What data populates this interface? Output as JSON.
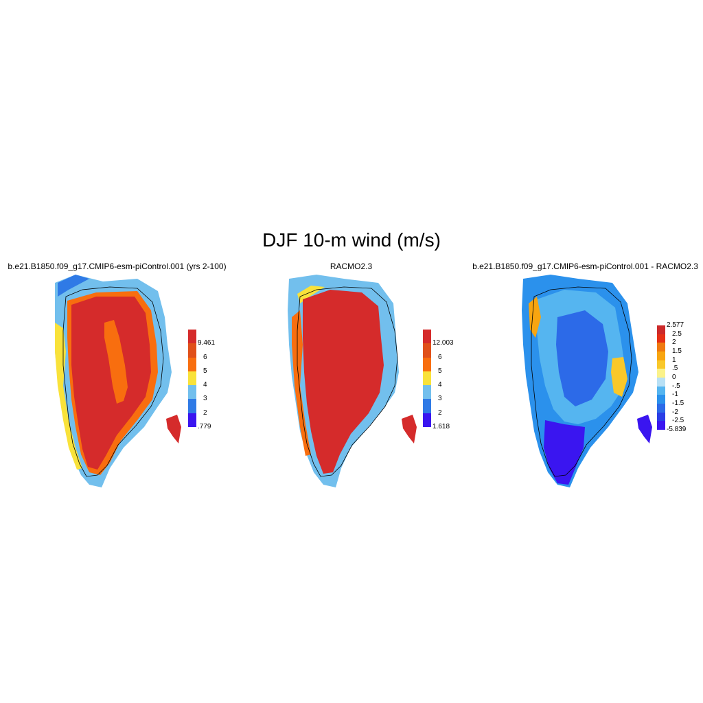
{
  "title": "DJF 10-m wind (m/s)",
  "panels": [
    {
      "name": "model",
      "title": "b.e21.B1850.f09_g17.CMIP6-esm-piControl.001 (yrs 2-100)",
      "colorbar": {
        "colors": [
          "#3a15f0",
          "#2f7ae6",
          "#72bfed",
          "#f9e23a",
          "#f86e0f",
          "#e0501a",
          "#d52b2b"
        ],
        "labels": [
          ".779",
          "2",
          "3",
          "4",
          "5",
          "6",
          "9.461"
        ]
      }
    },
    {
      "name": "racmo",
      "title": "RACMO2.3",
      "colorbar": {
        "colors": [
          "#3a15f0",
          "#2f7ae6",
          "#72bfed",
          "#f9e23a",
          "#f86e0f",
          "#e0501a",
          "#d52b2b"
        ],
        "labels": [
          "1.618",
          "2",
          "3",
          "4",
          "5",
          "6",
          "12.003"
        ]
      }
    },
    {
      "name": "difference",
      "title": "b.e21.B1850.f09_g17.CMIP6-esm-piControl.001 - RACMO2.3",
      "colorbar": {
        "colors": [
          "#3a15f0",
          "#2a3ee6",
          "#2c6ae8",
          "#2b91ec",
          "#55b5f0",
          "#b8e0f5",
          "#fbf28a",
          "#f9c82a",
          "#f8a510",
          "#f07a10",
          "#e63015",
          "#cc2a2a"
        ],
        "labels": [
          "-5.839",
          "-2.5",
          "-2",
          "-1.5",
          "-1",
          "-.5",
          "0",
          ".5",
          "1",
          "1.5",
          "2",
          "2.5",
          "2.577"
        ]
      }
    }
  ]
}
